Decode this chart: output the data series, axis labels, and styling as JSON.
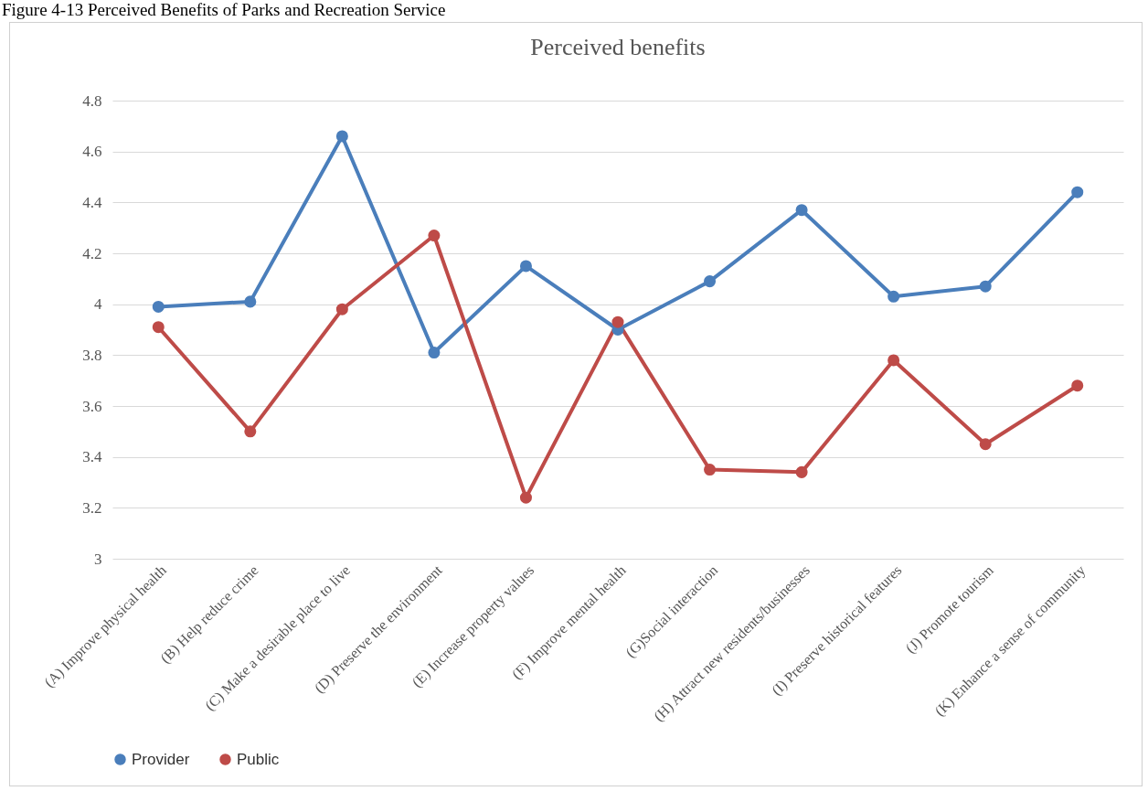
{
  "chart_data": {
    "type": "line",
    "title": "Perceived benefits",
    "annotations": [
      "Figure 4-13 Perceived Benefits of Parks and Recreation Service"
    ],
    "categories": [
      "(A) Improve physical health",
      "(B) Help reduce crime",
      "(C) Make a  desirable place to live",
      "(D) Preserve the environment",
      "(E) Increase property values",
      "(F) Improve mental health",
      "(G)Social interaction",
      "(H) Attract new residents/businesses",
      "(I) Preserve historical features",
      "(J) Promote tourism",
      "(K) Enhance a sense of community"
    ],
    "series": [
      {
        "name": "Provider",
        "color": "#4a7ebb",
        "values": [
          3.99,
          4.01,
          4.66,
          3.81,
          4.15,
          3.9,
          4.09,
          4.37,
          4.03,
          4.07,
          4.44
        ]
      },
      {
        "name": "Public",
        "color": "#be4b48",
        "values": [
          3.91,
          3.5,
          3.98,
          4.27,
          3.24,
          3.93,
          3.35,
          3.34,
          3.78,
          3.45,
          3.68
        ]
      }
    ],
    "ylim": [
      3,
      4.8
    ],
    "yticks": [
      3,
      3.2,
      3.4,
      3.6,
      3.8,
      4,
      4.2,
      4.4,
      4.6,
      4.8
    ],
    "grid": "y",
    "legend": "bottom",
    "marker": "circle",
    "line_style": "solid"
  }
}
